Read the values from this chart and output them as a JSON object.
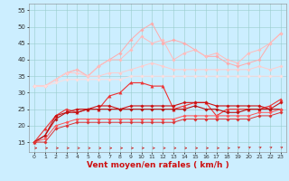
{
  "x": [
    0,
    1,
    2,
    3,
    4,
    5,
    6,
    7,
    8,
    9,
    10,
    11,
    12,
    13,
    14,
    15,
    16,
    17,
    18,
    19,
    20,
    21,
    22,
    23
  ],
  "series": [
    {
      "color": "#ffaaaa",
      "linewidth": 0.7,
      "marker": "D",
      "markersize": 1.8,
      "values": [
        32,
        32,
        34,
        36,
        37,
        35,
        38,
        40,
        42,
        46,
        49,
        51,
        45,
        46,
        45,
        43,
        41,
        41,
        39,
        38,
        39,
        40,
        45,
        48
      ]
    },
    {
      "color": "#ffbbbb",
      "linewidth": 0.7,
      "marker": "D",
      "markersize": 1.8,
      "values": [
        32,
        32,
        34,
        36,
        37,
        35,
        38,
        40,
        40,
        43,
        47,
        45,
        46,
        40,
        42,
        43,
        41,
        42,
        40,
        39,
        42,
        43,
        45,
        48
      ]
    },
    {
      "color": "#ffcccc",
      "linewidth": 0.7,
      "marker": "D",
      "markersize": 1.8,
      "values": [
        32,
        32,
        34,
        36,
        36,
        35,
        35,
        36,
        36,
        37,
        38,
        39,
        38,
        37,
        37,
        37,
        37,
        37,
        37,
        37,
        37,
        38,
        37,
        38
      ]
    },
    {
      "color": "#ffdddd",
      "linewidth": 0.7,
      "marker": "D",
      "markersize": 1.8,
      "values": [
        32,
        32,
        33,
        34,
        34,
        34,
        34,
        34,
        34,
        35,
        35,
        35,
        35,
        35,
        35,
        35,
        35,
        35,
        35,
        35,
        35,
        35,
        35,
        35
      ]
    },
    {
      "color": "#ee3333",
      "linewidth": 0.8,
      "marker": "^",
      "markersize": 2.5,
      "values": [
        15,
        19,
        23,
        25,
        24,
        25,
        25,
        29,
        30,
        33,
        33,
        32,
        32,
        25,
        26,
        27,
        27,
        23,
        25,
        25,
        25,
        25,
        26,
        28
      ]
    },
    {
      "color": "#cc1111",
      "linewidth": 0.8,
      "marker": "D",
      "markersize": 1.8,
      "values": [
        15,
        17,
        23,
        24,
        25,
        25,
        26,
        26,
        25,
        26,
        26,
        26,
        26,
        26,
        27,
        27,
        27,
        26,
        26,
        26,
        26,
        26,
        25,
        27
      ]
    },
    {
      "color": "#bb1111",
      "linewidth": 0.8,
      "marker": "D",
      "markersize": 1.8,
      "values": [
        15,
        17,
        22,
        24,
        24,
        25,
        25,
        25,
        25,
        25,
        25,
        25,
        25,
        25,
        25,
        26,
        25,
        25,
        24,
        24,
        25,
        25,
        25,
        25
      ]
    },
    {
      "color": "#ff5555",
      "linewidth": 0.7,
      "marker": "D",
      "markersize": 1.8,
      "values": [
        15,
        16,
        20,
        21,
        22,
        22,
        22,
        22,
        22,
        22,
        22,
        22,
        22,
        22,
        23,
        23,
        23,
        23,
        23,
        23,
        23,
        24,
        24,
        25
      ]
    },
    {
      "color": "#dd3333",
      "linewidth": 0.7,
      "marker": "D",
      "markersize": 1.8,
      "values": [
        15,
        15,
        19,
        20,
        21,
        21,
        21,
        21,
        21,
        21,
        21,
        21,
        21,
        21,
        22,
        22,
        22,
        22,
        22,
        22,
        22,
        23,
        23,
        24
      ]
    }
  ],
  "arrow_color": "#cc2222",
  "background_color": "#cceeff",
  "grid_color": "#99cccc",
  "xlabel": "Vent moyen/en rafales ( km/h )",
  "xlabel_color": "#cc1111",
  "xlabel_fontsize": 6.5,
  "ytick_labels": [
    "15",
    "20",
    "25",
    "30",
    "35",
    "40",
    "45",
    "50",
    "55"
  ],
  "yticks": [
    15,
    20,
    25,
    30,
    35,
    40,
    45,
    50,
    55
  ],
  "xticks": [
    0,
    1,
    2,
    3,
    4,
    5,
    6,
    7,
    8,
    9,
    10,
    11,
    12,
    13,
    14,
    15,
    16,
    17,
    18,
    19,
    20,
    21,
    22,
    23
  ],
  "ylim": [
    12,
    57
  ],
  "xlim": [
    -0.5,
    23.5
  ]
}
